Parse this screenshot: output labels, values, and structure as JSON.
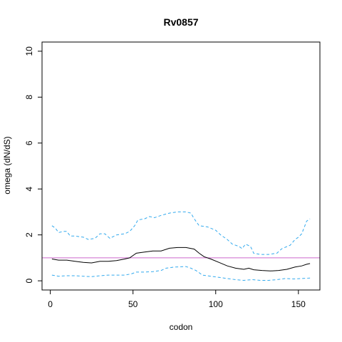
{
  "chart_data": {
    "type": "line",
    "title": "Rv0857",
    "xlabel": "codon",
    "ylabel": "omega (dN/dS)",
    "xlim": [
      -5,
      163
    ],
    "ylim": [
      -0.4,
      10.4
    ],
    "x_ticks": [
      0,
      50,
      100,
      150
    ],
    "y_ticks": [
      0,
      2,
      4,
      6,
      8,
      10
    ],
    "reference_line": {
      "y": 1,
      "color": "#cc66cc"
    },
    "grid": false,
    "legend": "none",
    "series": [
      {
        "role": "estimate",
        "color": "#000000",
        "style": "solid",
        "points": [
          [
            1,
            0.95
          ],
          [
            5,
            0.9
          ],
          [
            10,
            0.9
          ],
          [
            15,
            0.85
          ],
          [
            20,
            0.8
          ],
          [
            25,
            0.78
          ],
          [
            30,
            0.85
          ],
          [
            35,
            0.85
          ],
          [
            40,
            0.88
          ],
          [
            45,
            0.95
          ],
          [
            48,
            1.0
          ],
          [
            52,
            1.2
          ],
          [
            57,
            1.25
          ],
          [
            62,
            1.3
          ],
          [
            67,
            1.3
          ],
          [
            72,
            1.42
          ],
          [
            77,
            1.45
          ],
          [
            82,
            1.45
          ],
          [
            87,
            1.38
          ],
          [
            90,
            1.2
          ],
          [
            93,
            1.05
          ],
          [
            97,
            0.95
          ],
          [
            102,
            0.8
          ],
          [
            107,
            0.65
          ],
          [
            112,
            0.55
          ],
          [
            117,
            0.5
          ],
          [
            120,
            0.55
          ],
          [
            123,
            0.48
          ],
          [
            128,
            0.45
          ],
          [
            133,
            0.43
          ],
          [
            138,
            0.45
          ],
          [
            143,
            0.5
          ],
          [
            148,
            0.6
          ],
          [
            152,
            0.65
          ],
          [
            155,
            0.72
          ],
          [
            157,
            0.75
          ]
        ]
      },
      {
        "role": "upper bound",
        "color": "#33aaee",
        "style": "dashed",
        "points": [
          [
            1,
            2.4
          ],
          [
            3,
            2.3
          ],
          [
            5,
            2.1
          ],
          [
            8,
            2.15
          ],
          [
            10,
            2.15
          ],
          [
            12,
            1.95
          ],
          [
            15,
            1.95
          ],
          [
            20,
            1.9
          ],
          [
            23,
            1.8
          ],
          [
            27,
            1.85
          ],
          [
            30,
            2.05
          ],
          [
            33,
            2.05
          ],
          [
            36,
            1.85
          ],
          [
            40,
            2.0
          ],
          [
            45,
            2.05
          ],
          [
            48,
            2.15
          ],
          [
            51,
            2.4
          ],
          [
            53,
            2.65
          ],
          [
            57,
            2.7
          ],
          [
            60,
            2.8
          ],
          [
            63,
            2.75
          ],
          [
            67,
            2.85
          ],
          [
            72,
            2.95
          ],
          [
            77,
            3.0
          ],
          [
            82,
            3.0
          ],
          [
            85,
            2.95
          ],
          [
            87,
            2.7
          ],
          [
            90,
            2.4
          ],
          [
            95,
            2.35
          ],
          [
            100,
            2.2
          ],
          [
            103,
            2.0
          ],
          [
            107,
            1.8
          ],
          [
            110,
            1.6
          ],
          [
            114,
            1.5
          ],
          [
            116,
            1.4
          ],
          [
            118,
            1.6
          ],
          [
            121,
            1.5
          ],
          [
            123,
            1.2
          ],
          [
            127,
            1.15
          ],
          [
            132,
            1.15
          ],
          [
            137,
            1.2
          ],
          [
            140,
            1.4
          ],
          [
            145,
            1.55
          ],
          [
            148,
            1.8
          ],
          [
            150,
            1.9
          ],
          [
            152,
            2.05
          ],
          [
            155,
            2.6
          ],
          [
            157,
            2.7
          ]
        ]
      },
      {
        "role": "lower bound",
        "color": "#33aaee",
        "style": "dashed",
        "points": [
          [
            1,
            0.25
          ],
          [
            5,
            0.2
          ],
          [
            10,
            0.22
          ],
          [
            15,
            0.22
          ],
          [
            20,
            0.2
          ],
          [
            25,
            0.18
          ],
          [
            30,
            0.22
          ],
          [
            35,
            0.25
          ],
          [
            40,
            0.25
          ],
          [
            45,
            0.25
          ],
          [
            49,
            0.3
          ],
          [
            52,
            0.38
          ],
          [
            57,
            0.38
          ],
          [
            62,
            0.4
          ],
          [
            67,
            0.45
          ],
          [
            70,
            0.55
          ],
          [
            75,
            0.6
          ],
          [
            82,
            0.62
          ],
          [
            85,
            0.55
          ],
          [
            88,
            0.45
          ],
          [
            92,
            0.25
          ],
          [
            97,
            0.2
          ],
          [
            102,
            0.15
          ],
          [
            107,
            0.1
          ],
          [
            112,
            0.05
          ],
          [
            117,
            0.02
          ],
          [
            122,
            0.05
          ],
          [
            127,
            0.02
          ],
          [
            132,
            0.02
          ],
          [
            137,
            0.05
          ],
          [
            142,
            0.1
          ],
          [
            147,
            0.08
          ],
          [
            152,
            0.1
          ],
          [
            157,
            0.12
          ]
        ]
      }
    ]
  }
}
